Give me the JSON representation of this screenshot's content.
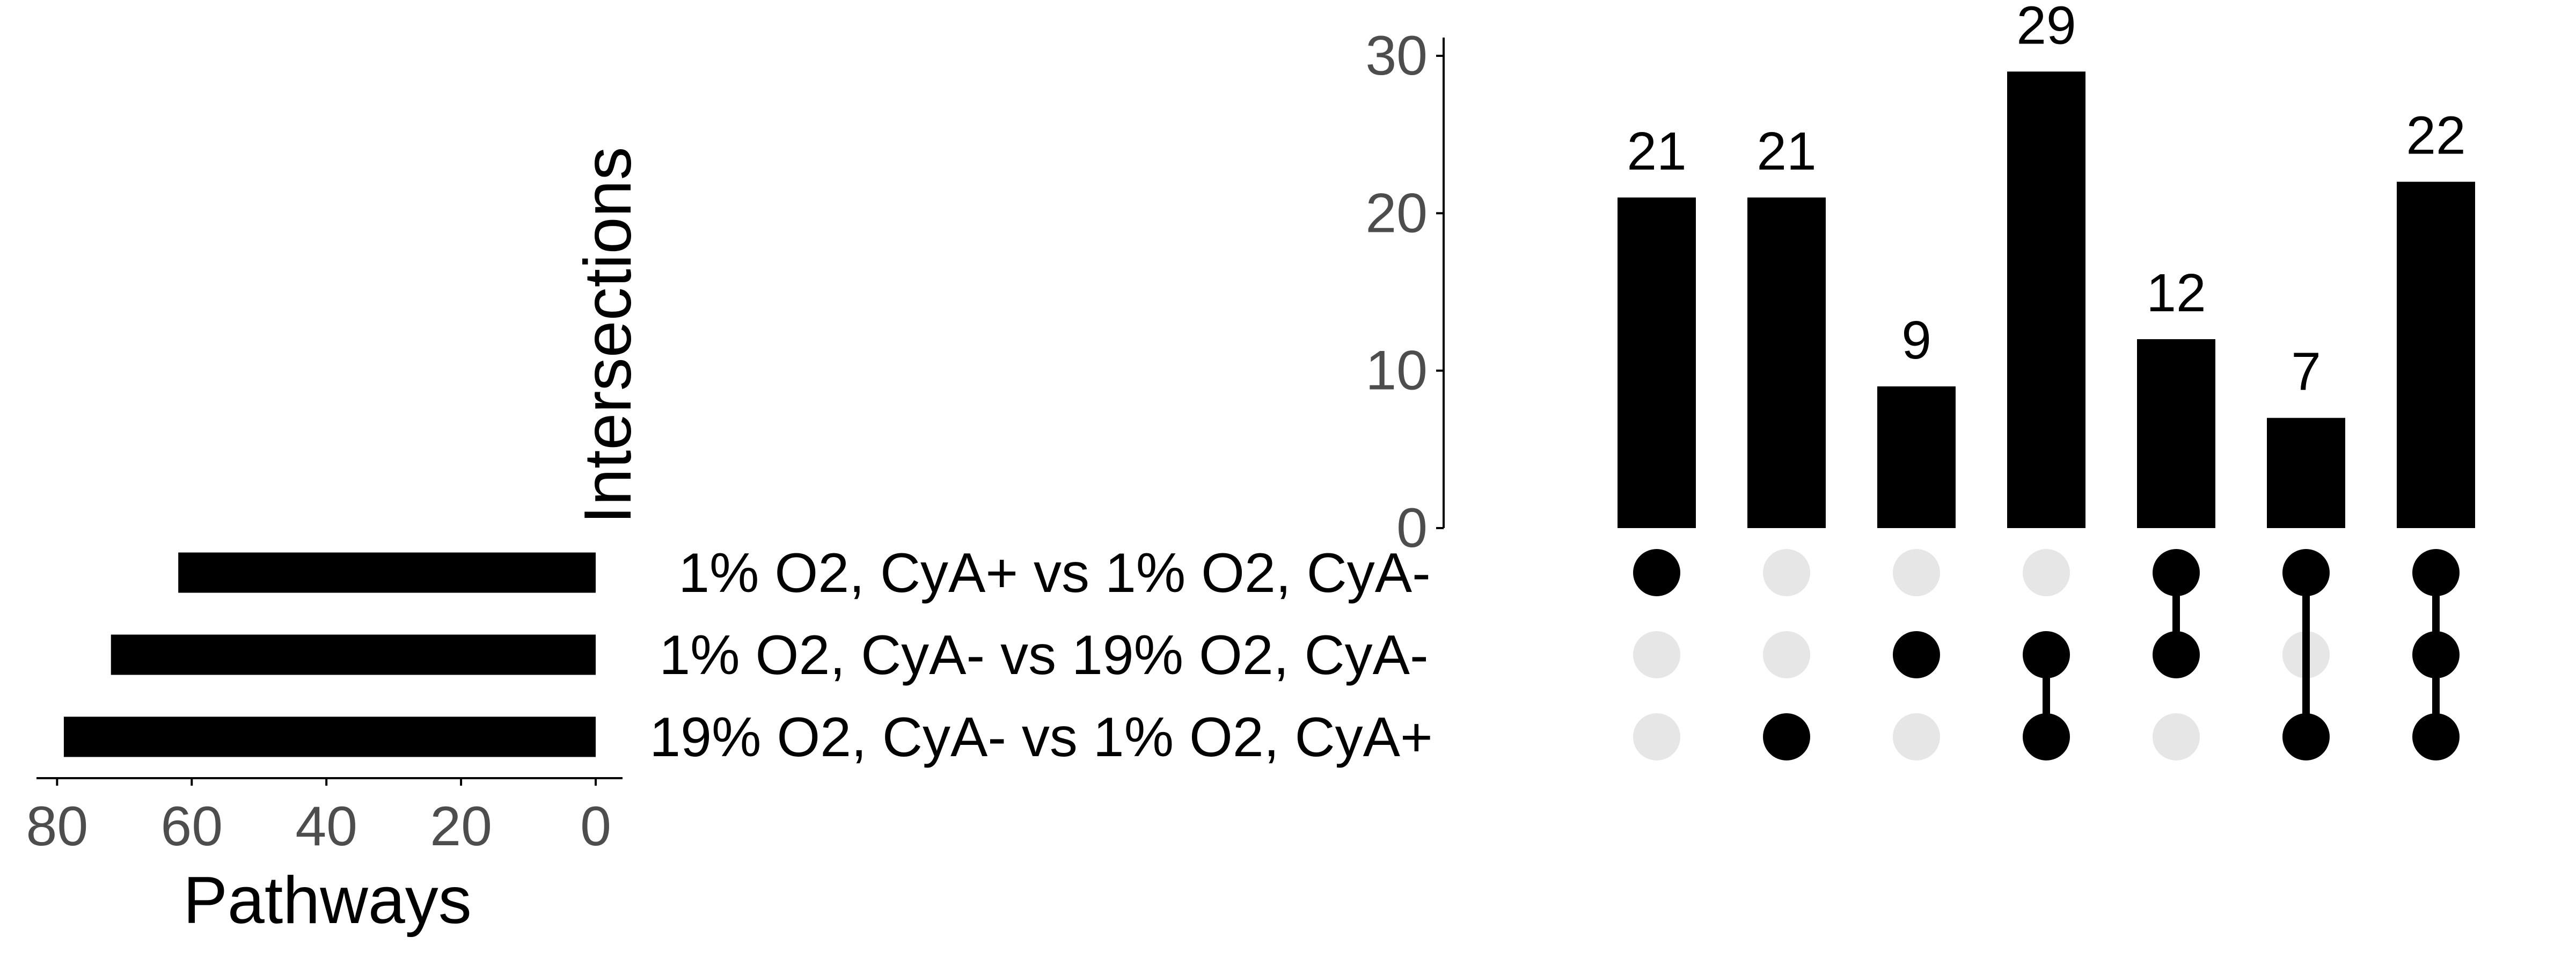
{
  "chart_data": {
    "type": "upset",
    "sets": [
      {
        "label": "1% O2, CyA+ vs 1% O2, CyA-",
        "size": 62
      },
      {
        "label": "1% O2, CyA- vs 19% O2, CyA-",
        "size": 72
      },
      {
        "label": "19% O2, CyA- vs 1% O2, CyA+",
        "size": 79
      }
    ],
    "intersections": [
      {
        "value": 21,
        "label": "21",
        "members": [
          0
        ]
      },
      {
        "value": 21,
        "label": "21",
        "members": [
          2
        ]
      },
      {
        "value": 9,
        "label": "9",
        "members": [
          1
        ]
      },
      {
        "value": 29,
        "label": "29",
        "members": [
          1,
          2
        ]
      },
      {
        "value": 12,
        "label": "12",
        "members": [
          0,
          1
        ]
      },
      {
        "value": 7,
        "label": "7",
        "members": [
          0,
          2
        ]
      },
      {
        "value": 22,
        "label": "22",
        "members": [
          0,
          1,
          2
        ]
      }
    ],
    "intersections_axis": {
      "label": "Intersections",
      "ylim": [
        0,
        31.5
      ],
      "ticks": [
        0,
        10,
        20,
        30
      ],
      "tick_labels": [
        "0",
        "10",
        "20",
        "30"
      ]
    },
    "set_size_axis": {
      "label": "Pathways",
      "xlim": [
        82.5,
        0
      ],
      "ticks": [
        80,
        60,
        40,
        20,
        0
      ],
      "tick_labels": [
        "80",
        "60",
        "40",
        "20",
        "0"
      ]
    },
    "colors": {
      "bar": "#000000",
      "dot_active": "#000000",
      "dot_inactive": "#e6e6e6",
      "axis": "#000000",
      "tick_label": "#4d4d4d"
    }
  }
}
